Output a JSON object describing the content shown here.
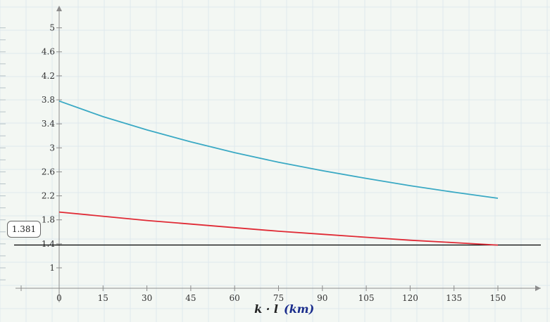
{
  "chart_data": {
    "type": "line",
    "x_ticks": [
      0,
      15,
      30,
      45,
      60,
      75,
      90,
      105,
      120,
      135,
      150
    ],
    "y_ticks": [
      1,
      1.4,
      1.8,
      2.2,
      2.6,
      3,
      3.4,
      3.8,
      4.2,
      4.6,
      5
    ],
    "x_tick_labels": [
      "0",
      "15",
      "30",
      "45",
      "60",
      "75",
      "90",
      "105",
      "120",
      "135",
      "150"
    ],
    "y_tick_labels": [
      "1",
      "1.4",
      "1.8",
      "2.2",
      "2.6",
      "3",
      "3.4",
      "3.8",
      "4.2",
      "4.6",
      "5"
    ],
    "xlabel_main": "k · l",
    "xlabel_unit": "(km)",
    "xlim": [
      -26,
      276
    ],
    "ylim": [
      0.66,
      5.3
    ],
    "horizontal_marker": {
      "value": 1.381,
      "label": "1.381",
      "color": "#000000"
    },
    "series": [
      {
        "color": "#3aa9c4",
        "x": [
          0,
          15,
          30,
          45,
          60,
          75,
          90,
          105,
          120,
          135,
          150
        ],
        "y": [
          3.78,
          3.52,
          3.3,
          3.1,
          2.92,
          2.76,
          2.62,
          2.49,
          2.37,
          2.26,
          2.16
        ]
      },
      {
        "color": "#e02a35",
        "x": [
          0,
          15,
          30,
          45,
          60,
          75,
          90,
          105,
          120,
          135,
          150
        ],
        "y": [
          1.93,
          1.86,
          1.79,
          1.73,
          1.67,
          1.61,
          1.56,
          1.51,
          1.46,
          1.42,
          1.38
        ]
      }
    ]
  }
}
